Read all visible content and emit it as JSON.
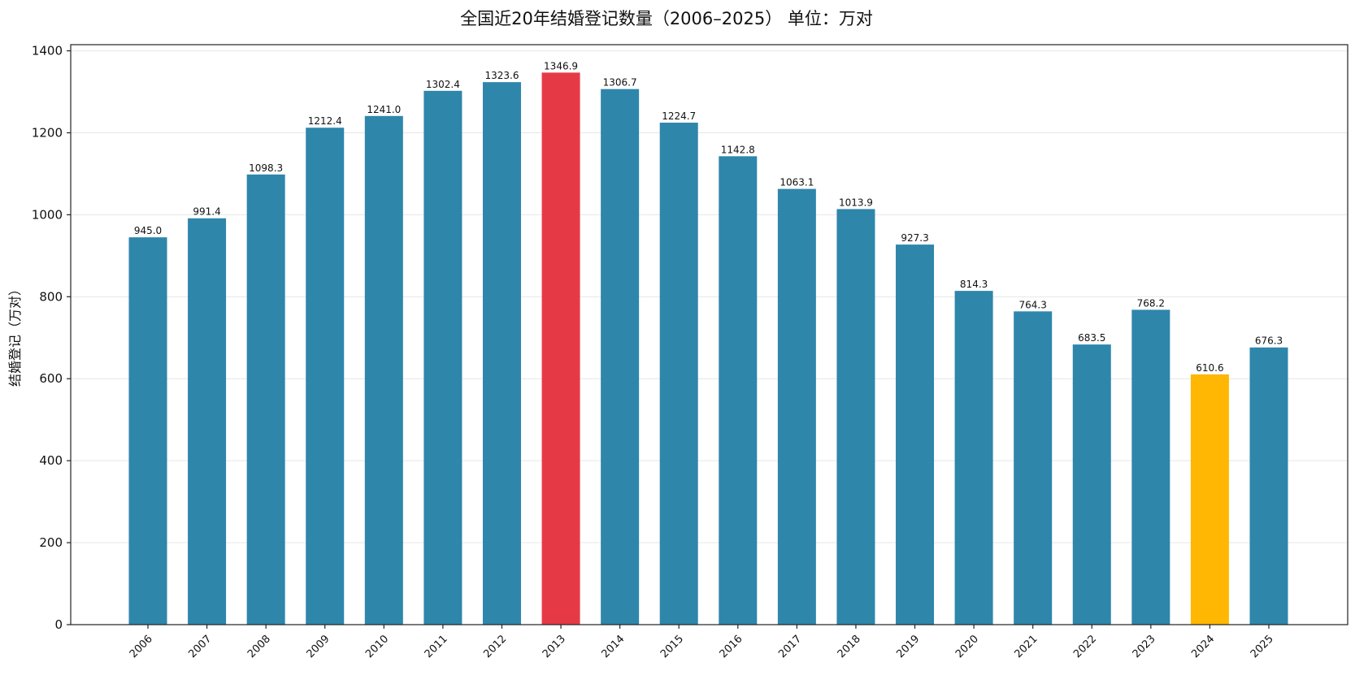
{
  "chart_data": {
    "type": "bar",
    "title": "全国近20年结婚登记数量（2006–2025） 单位：万对",
    "ylabel": "结婚登记（万对）",
    "xlabel": "",
    "ylim": [
      0,
      1400
    ],
    "yticks": [
      0,
      200,
      400,
      600,
      800,
      1000,
      1200,
      1400
    ],
    "grid": "horizontal",
    "categories": [
      "2006",
      "2007",
      "2008",
      "2009",
      "2010",
      "2011",
      "2012",
      "2013",
      "2014",
      "2015",
      "2016",
      "2017",
      "2018",
      "2019",
      "2020",
      "2021",
      "2022",
      "2023",
      "2024",
      "2025"
    ],
    "values": [
      945.0,
      991.4,
      1098.3,
      1212.4,
      1241.0,
      1302.4,
      1323.6,
      1346.9,
      1306.7,
      1224.7,
      1142.8,
      1063.1,
      1013.9,
      927.3,
      814.3,
      764.3,
      683.5,
      768.2,
      610.6,
      676.3
    ],
    "data_labels": [
      "945.0",
      "991.4",
      "1098.3",
      "1212.4",
      "1241.0",
      "1302.4",
      "1323.6",
      "1346.9",
      "1306.7",
      "1224.7",
      "1142.8",
      "1063.1",
      "1013.9",
      "927.3",
      "814.3",
      "764.3",
      "683.5",
      "768.2",
      "610.6",
      "676.3"
    ],
    "colors": {
      "default": "#2e86ab",
      "highlight_max": "#e63946",
      "highlight_min": "#ffb703"
    },
    "highlight": {
      "max_category": "2013",
      "min_category": "2024"
    }
  }
}
